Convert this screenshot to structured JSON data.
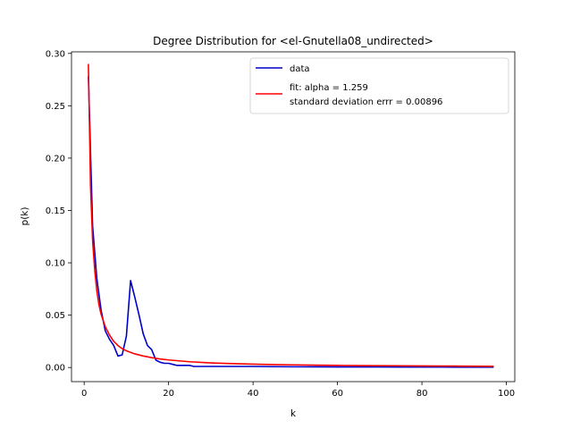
{
  "chart_data": {
    "type": "line",
    "title": "Degree  Distribution for <el-Gnutella08_undirected>",
    "xlabel": "k",
    "ylabel": "p(k)",
    "xlim": [
      -3,
      102
    ],
    "ylim": [
      -0.0135,
      0.3015
    ],
    "xticks": [
      0,
      20,
      40,
      60,
      80,
      100
    ],
    "xtick_labels": [
      "0",
      "20",
      "40",
      "60",
      "80",
      "100"
    ],
    "yticks": [
      0.0,
      0.05,
      0.1,
      0.15,
      0.2,
      0.25,
      0.3
    ],
    "ytick_labels": [
      "0.00",
      "0.05",
      "0.10",
      "0.15",
      "0.20",
      "0.25",
      "0.30"
    ],
    "grid": false,
    "legend_position": "top-right",
    "series": [
      {
        "name": "data",
        "color": "#0000cc",
        "x": [
          1,
          2,
          3,
          4,
          5,
          6,
          7,
          8,
          9,
          10,
          11,
          12,
          13,
          14,
          15,
          16,
          17,
          18,
          19,
          20,
          21,
          22,
          23,
          24,
          25,
          26,
          27,
          28,
          29,
          30,
          32,
          35,
          40,
          45,
          50,
          55,
          60,
          65,
          70,
          75,
          80,
          85,
          90,
          95,
          97
        ],
        "y": [
          0.278,
          0.135,
          0.085,
          0.055,
          0.035,
          0.027,
          0.021,
          0.011,
          0.012,
          0.03,
          0.083,
          0.067,
          0.05,
          0.032,
          0.021,
          0.017,
          0.007,
          0.005,
          0.004,
          0.004,
          0.003,
          0.002,
          0.002,
          0.002,
          0.002,
          0.001,
          0.001,
          0.001,
          0.001,
          0.001,
          0.001,
          0.001,
          0.001,
          0.0008,
          0.0007,
          0.0006,
          0.0005,
          0.0005,
          0.0005,
          0.0004,
          0.0004,
          0.0004,
          0.0003,
          0.0003,
          0.0003
        ]
      },
      {
        "name": "fit: alpha = 1.259\nstandard deviation errr = 0.00896",
        "name_lines": [
          "fit: alpha = 1.259",
          "standard deviation errr = 0.00896"
        ],
        "color": "#ff0000",
        "alpha": 1.259,
        "x": [
          1,
          1.5,
          2,
          2.5,
          3,
          3.5,
          4,
          5,
          6,
          7,
          8,
          9,
          10,
          12,
          14,
          16,
          18,
          20,
          25,
          30,
          35,
          40,
          45,
          50,
          55,
          60,
          65,
          70,
          75,
          80,
          85,
          90,
          95,
          97
        ],
        "y": [
          0.29,
          0.174,
          0.121,
          0.093,
          0.073,
          0.06,
          0.051,
          0.039,
          0.031,
          0.025,
          0.021,
          0.018,
          0.016,
          0.013,
          0.011,
          0.0094,
          0.0081,
          0.0072,
          0.0055,
          0.0044,
          0.0037,
          0.0032,
          0.0028,
          0.0025,
          0.0022,
          0.002,
          0.0018,
          0.0017,
          0.0016,
          0.0015,
          0.0014,
          0.0013,
          0.0012,
          0.0012
        ]
      }
    ]
  }
}
